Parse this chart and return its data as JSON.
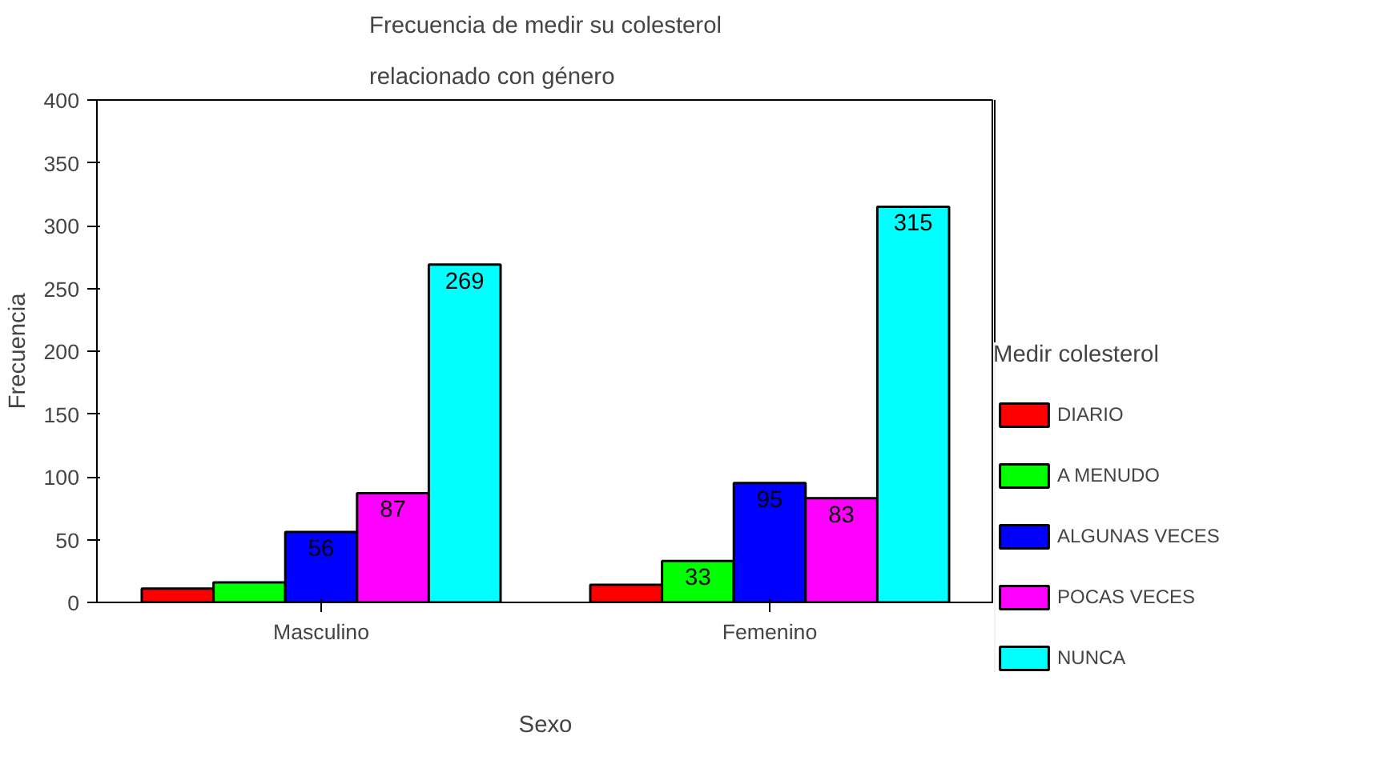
{
  "chart_data": {
    "type": "bar",
    "title": "Frecuencia de medir su colesterol\nrelacionado con género",
    "xlabel": "Sexo",
    "ylabel": "Frecuencia",
    "legend_title": "Medir colesterol",
    "categories": [
      "Masculino",
      "Femenino"
    ],
    "series": [
      {
        "name": "DIARIO",
        "color": "#ff0000",
        "values": [
          11,
          14
        ],
        "value_labels": [
          null,
          null
        ]
      },
      {
        "name": "A MENUDO",
        "color": "#00ff00",
        "values": [
          16,
          33
        ],
        "value_labels": [
          null,
          "33"
        ]
      },
      {
        "name": "ALGUNAS VECES",
        "color": "#0000ff",
        "values": [
          56,
          95
        ],
        "value_labels": [
          "56",
          "95"
        ]
      },
      {
        "name": "POCAS VECES",
        "color": "#ff00ff",
        "values": [
          87,
          83
        ],
        "value_labels": [
          "87",
          "83"
        ]
      },
      {
        "name": "NUNCA",
        "color": "#00ffff",
        "values": [
          269,
          315
        ],
        "value_labels": [
          "269",
          "315"
        ]
      }
    ],
    "ylim": [
      0,
      400
    ],
    "yticks": [
      0,
      50,
      100,
      150,
      200,
      250,
      300,
      350,
      400
    ],
    "grid": false,
    "legend": "right"
  }
}
